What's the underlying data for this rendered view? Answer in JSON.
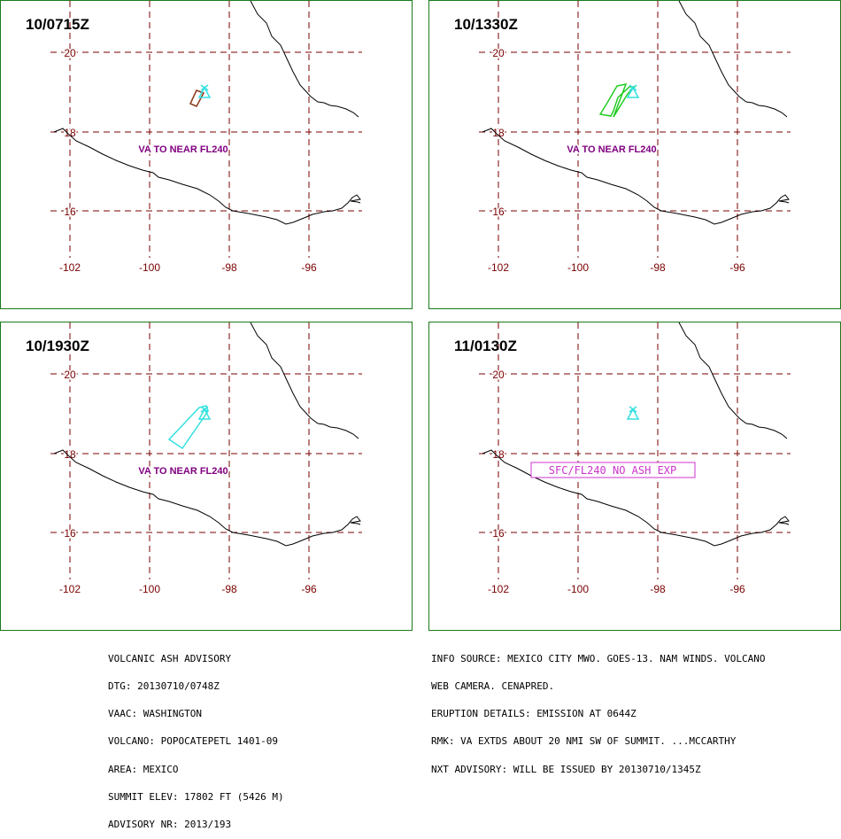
{
  "colors": {
    "grid": "#7a0000",
    "frame": "#1a7a1a",
    "coast": "#000000",
    "va_label": "#800080",
    "no_ash_box": "#cc33cc",
    "volcano": "#33e0e0"
  },
  "grid_labels": {
    "lat": [
      "20",
      "18",
      "16"
    ],
    "lon": [
      "-102",
      "-100",
      "-98",
      "-96"
    ]
  },
  "panels": [
    {
      "id": "p1",
      "title": "10/0715Z",
      "label": "VA TO NEAR FL240",
      "label_style": "text",
      "ash_color": "#8b3a1a"
    },
    {
      "id": "p2",
      "title": "10/1330Z",
      "label": "VA TO NEAR FL240",
      "label_style": "text",
      "ash_color": "#20cc20"
    },
    {
      "id": "p3",
      "title": "10/1930Z",
      "label": "VA TO NEAR FL240",
      "label_style": "text",
      "ash_color": "#33e0e0"
    },
    {
      "id": "p4",
      "title": "11/0130Z",
      "label": "SFC/FL240 NO ASH EXP",
      "label_style": "box",
      "ash_color": ""
    }
  ],
  "advisory_left": [
    "VOLCANIC ASH ADVISORY",
    "DTG: 20130710/0748Z",
    "VAAC: WASHINGTON",
    "VOLCANO: POPOCATEPETL 1401-09",
    "AREA: MEXICO",
    "SUMMIT ELEV: 17802 FT (5426 M)",
    "ADVISORY NR: 2013/193"
  ],
  "advisory_right": [
    "INFO SOURCE: MEXICO CITY MWO. GOES-13. NAM WINDS. VOLCANO",
    "WEB CAMERA. CENAPRED.",
    "ERUPTION DETAILS: EMISSION AT 0644Z",
    "RMK: VA EXTDS ABOUT 20 NMI SW OF SUMMIT. ...MCCARTHY",
    "NXT ADVISORY: WILL BE ISSUED BY 20130710/1345Z"
  ]
}
